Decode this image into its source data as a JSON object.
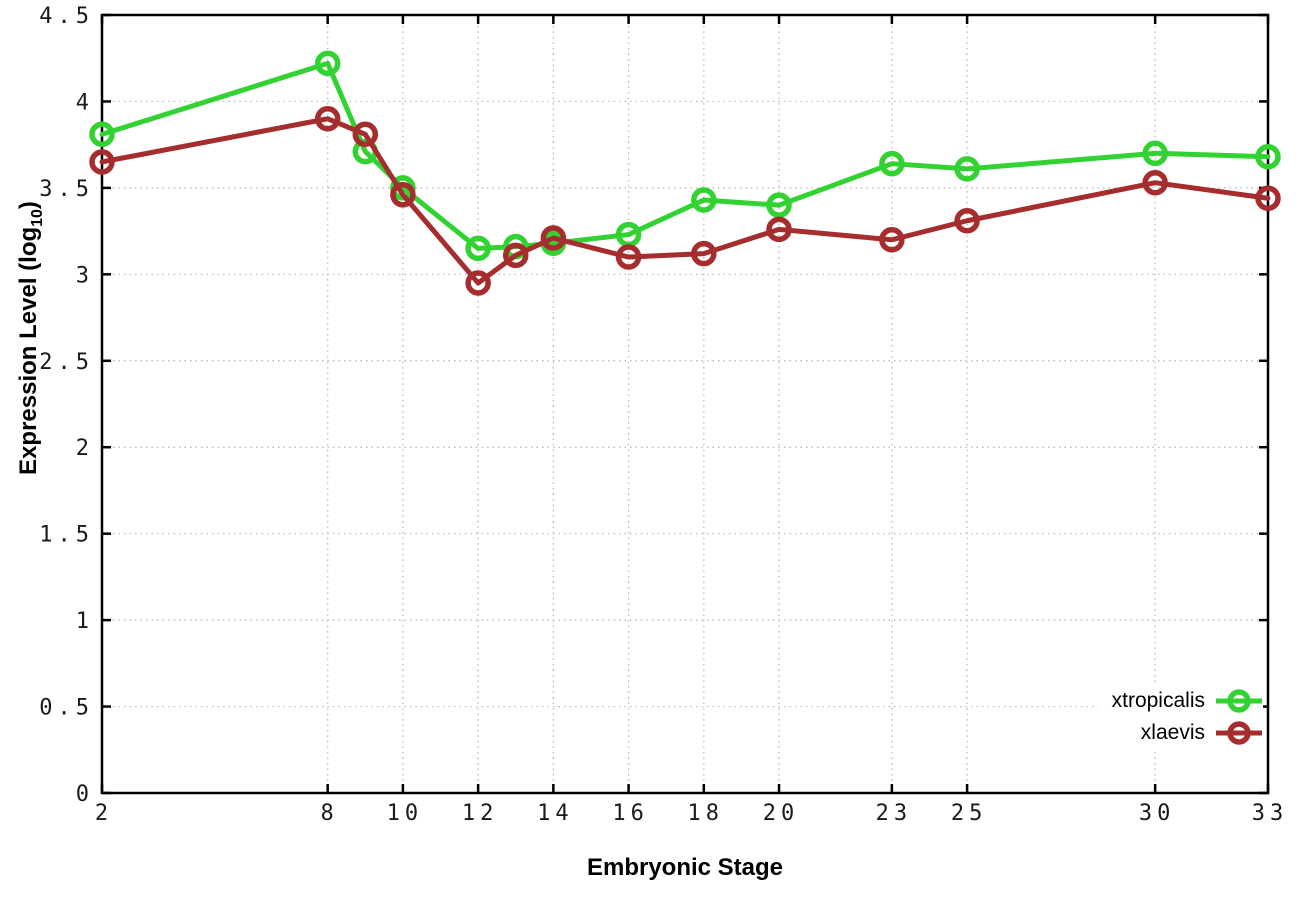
{
  "chart_data": {
    "type": "line",
    "title": "",
    "xlabel": "Embryonic Stage",
    "ylabel": "Expression Level (log10)",
    "ylabel_parts": {
      "pre": "Expression Level (log",
      "sub": "10",
      "post": ")"
    },
    "xlim": [
      2,
      33
    ],
    "ylim": [
      0,
      4.5
    ],
    "x_ticks": [
      2,
      8,
      10,
      12,
      14,
      16,
      18,
      20,
      23,
      25,
      30,
      33
    ],
    "x_tick_labels": [
      "2",
      "8",
      "10",
      "12",
      "14",
      "16",
      "18",
      "20",
      "23",
      "25",
      "30",
      "33"
    ],
    "y_ticks": [
      0,
      0.5,
      1,
      1.5,
      2,
      2.5,
      3,
      3.5,
      4,
      4.5
    ],
    "y_tick_labels": [
      "0",
      "0.5",
      "1",
      "1.5",
      "2",
      "2.5",
      "3",
      "3.5",
      "4",
      "4.5"
    ],
    "grid": true,
    "marker": "open-circle",
    "legend_position": "bottom-right-inside",
    "x": [
      2,
      8,
      9,
      10,
      12,
      13,
      14,
      16,
      18,
      20,
      23,
      25,
      30,
      33
    ],
    "series": [
      {
        "name": "xtropicalis",
        "color": "#32d232",
        "values": [
          3.81,
          4.22,
          3.71,
          3.5,
          3.15,
          3.16,
          3.18,
          3.23,
          3.43,
          3.4,
          3.64,
          3.61,
          3.7,
          3.68
        ]
      },
      {
        "name": "xlaevis",
        "color": "#a52d2d",
        "values": [
          3.65,
          3.9,
          3.81,
          3.46,
          2.95,
          3.11,
          3.21,
          3.1,
          3.12,
          3.26,
          3.2,
          3.31,
          3.53,
          3.44
        ]
      }
    ],
    "colors": {
      "background": "#ffffff",
      "border": "#000000",
      "grid": "#b5b5b5",
      "tick_label": "#1a1a1a"
    }
  }
}
